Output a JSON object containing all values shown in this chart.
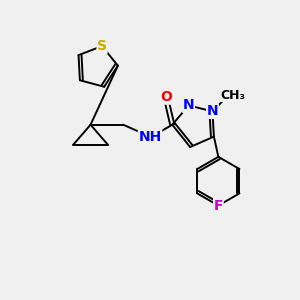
{
  "bg_color": "#f0f0f0",
  "atom_colors": {
    "S": "#ccaa00",
    "N": "#0000ff",
    "O": "#ff0000",
    "F": "#cc00cc",
    "H": "#008080",
    "C": "#000000"
  },
  "bond_color": "#000000",
  "bond_width": 1.4,
  "figsize": [
    3.0,
    3.0
  ],
  "dpi": 100,
  "font_size_atom": 10,
  "font_size_small": 9
}
